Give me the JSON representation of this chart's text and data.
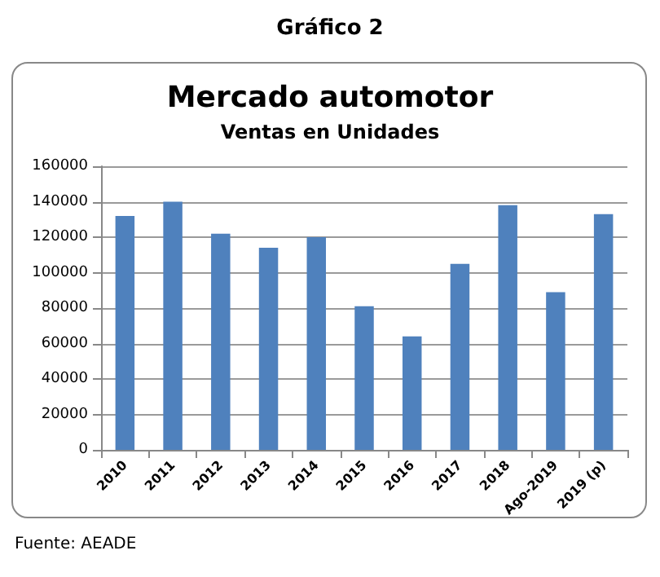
{
  "chart_data": {
    "type": "bar",
    "title": "Mercado automotor",
    "subtitle": "Ventas en Unidades",
    "annotations": [
      "Gráfico 2",
      "Fuente: AEADE"
    ],
    "categories": [
      "2010",
      "2011",
      "2012",
      "2013",
      "2014",
      "2015",
      "2016",
      "2017",
      "2018",
      "Ago-2019",
      "2019 (p)"
    ],
    "values": [
      132000,
      140000,
      122000,
      114000,
      120000,
      81000,
      64000,
      105000,
      138000,
      89000,
      133000
    ],
    "color": "#4f81bd",
    "ylim": [
      0,
      160000
    ],
    "yticks": [
      0,
      20000,
      40000,
      60000,
      80000,
      100000,
      120000,
      140000,
      160000
    ],
    "grid": "y"
  }
}
